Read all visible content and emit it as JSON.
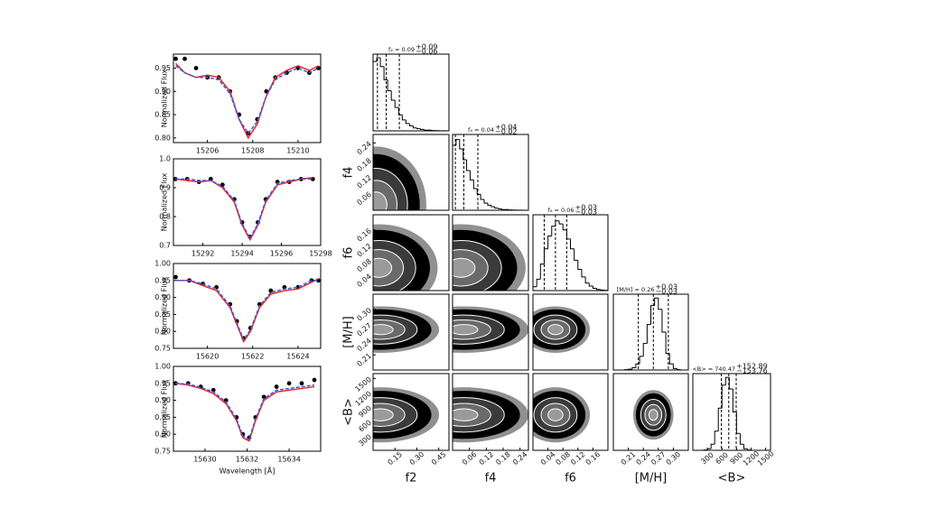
{
  "chart_data": [
    {
      "type": "line",
      "ylabel": "Normalized Flux",
      "xlim": [
        15204.5,
        15211
      ],
      "ylim": [
        0.79,
        0.98
      ],
      "xticks": [
        15206,
        15208,
        15210
      ],
      "yticks": [
        {
          "value": 0.8,
          "label": "0.80"
        },
        0.85,
        {
          "value": 0.9,
          "label": "0.90"
        },
        0.95
      ],
      "x": [
        15204.6,
        15205.0,
        15205.5,
        15206.0,
        15206.5,
        15207.0,
        15207.4,
        15207.8,
        15208.2,
        15208.6,
        15209.0,
        15209.5,
        15210.0,
        15210.5,
        15210.9
      ],
      "series": [
        {
          "style": "dots",
          "color": "#000000",
          "values": [
            0.97,
            0.97,
            0.95,
            0.93,
            0.93,
            0.9,
            0.85,
            0.81,
            0.84,
            0.9,
            0.93,
            0.94,
            0.95,
            0.94,
            0.95
          ]
        },
        {
          "style": "solid",
          "color": "#e8262a",
          "values": [
            0.96,
            0.94,
            0.93,
            0.935,
            0.93,
            0.9,
            0.84,
            0.8,
            0.83,
            0.89,
            0.93,
            0.945,
            0.955,
            0.945,
            0.955
          ]
        },
        {
          "style": "dashed",
          "color": "#3a5bd9",
          "values": [
            0.955,
            0.94,
            0.93,
            0.93,
            0.925,
            0.895,
            0.84,
            0.81,
            0.835,
            0.89,
            0.925,
            0.94,
            0.95,
            0.94,
            0.95
          ]
        }
      ]
    },
    {
      "type": "line",
      "ylabel": "Normalized Flux",
      "xlim": [
        15290.5,
        15298
      ],
      "ylim": [
        0.7,
        1.0
      ],
      "xticks": [
        15292,
        15294,
        15296,
        15298
      ],
      "yticks": [
        0.7,
        0.8,
        0.9,
        {
          "value": 1.0,
          "label": "1.0"
        }
      ],
      "x": [
        15290.6,
        15291.2,
        15291.8,
        15292.4,
        15293.0,
        15293.6,
        15294.0,
        15294.4,
        15294.8,
        15295.2,
        15295.8,
        15296.4,
        15297.0,
        15297.6
      ],
      "series": [
        {
          "style": "dots",
          "color": "#000000",
          "values": [
            0.93,
            0.93,
            0.92,
            0.93,
            0.91,
            0.86,
            0.78,
            0.73,
            0.78,
            0.86,
            0.92,
            0.92,
            0.93,
            0.93
          ]
        },
        {
          "style": "solid",
          "color": "#e8262a",
          "values": [
            0.93,
            0.925,
            0.92,
            0.925,
            0.9,
            0.85,
            0.77,
            0.72,
            0.77,
            0.85,
            0.91,
            0.92,
            0.93,
            0.935
          ]
        },
        {
          "style": "dashed",
          "color": "#3a5bd9",
          "values": [
            0.93,
            0.93,
            0.925,
            0.925,
            0.905,
            0.855,
            0.775,
            0.725,
            0.775,
            0.855,
            0.915,
            0.925,
            0.93,
            0.93
          ]
        }
      ]
    },
    {
      "type": "line",
      "ylabel": "Normalized Flux",
      "xlim": [
        15618.5,
        15625
      ],
      "ylim": [
        0.75,
        1.0
      ],
      "xticks": [
        15620,
        15622,
        15624
      ],
      "yticks": [
        0.75,
        {
          "value": 0.8,
          "label": "0.80"
        },
        0.85,
        {
          "value": 0.9,
          "label": "0.90"
        },
        0.95,
        {
          "value": 1.0,
          "label": "1.00"
        }
      ],
      "x": [
        15618.6,
        15619.2,
        15619.8,
        15620.4,
        15621.0,
        15621.3,
        15621.6,
        15621.9,
        15622.3,
        15622.8,
        15623.4,
        15624.0,
        15624.6,
        15624.9
      ],
      "series": [
        {
          "style": "dots",
          "color": "#000000",
          "values": [
            0.96,
            0.95,
            0.94,
            0.93,
            0.88,
            0.83,
            0.78,
            0.81,
            0.88,
            0.92,
            0.93,
            0.93,
            0.95,
            0.95
          ]
        },
        {
          "style": "solid",
          "color": "#e8262a",
          "values": [
            0.95,
            0.95,
            0.935,
            0.92,
            0.87,
            0.82,
            0.77,
            0.8,
            0.87,
            0.91,
            0.92,
            0.925,
            0.945,
            0.955
          ]
        },
        {
          "style": "dashed",
          "color": "#3a5bd9",
          "values": [
            0.95,
            0.95,
            0.94,
            0.925,
            0.875,
            0.825,
            0.775,
            0.805,
            0.875,
            0.915,
            0.925,
            0.93,
            0.95,
            0.95
          ]
        }
      ]
    },
    {
      "type": "line",
      "ylabel": "Normalized Flux",
      "xlabel": "Wavelength [Å]",
      "xlim": [
        15628.5,
        15635.5
      ],
      "ylim": [
        0.75,
        1.0
      ],
      "xticks": [
        15630,
        15632,
        15634
      ],
      "yticks": [
        0.75,
        {
          "value": 0.8,
          "label": "0.80"
        },
        0.85,
        {
          "value": 0.9,
          "label": "0.90"
        },
        0.95,
        {
          "value": 1.0,
          "label": "1.00"
        }
      ],
      "x": [
        15628.6,
        15629.2,
        15629.8,
        15630.4,
        15631.0,
        15631.5,
        15631.8,
        15632.1,
        15632.4,
        15632.8,
        15633.4,
        15634.0,
        15634.6,
        15635.2
      ],
      "series": [
        {
          "style": "dots",
          "color": "#000000",
          "values": [
            0.95,
            0.95,
            0.94,
            0.93,
            0.9,
            0.85,
            0.8,
            0.79,
            0.85,
            0.91,
            0.94,
            0.95,
            0.95,
            0.96
          ]
        },
        {
          "style": "solid",
          "color": "#e8262a",
          "values": [
            0.95,
            0.945,
            0.935,
            0.92,
            0.89,
            0.84,
            0.79,
            0.78,
            0.84,
            0.9,
            0.925,
            0.93,
            0.935,
            0.94
          ]
        },
        {
          "style": "dashed",
          "color": "#3a5bd9",
          "values": [
            0.95,
            0.948,
            0.938,
            0.925,
            0.895,
            0.845,
            0.795,
            0.785,
            0.845,
            0.905,
            0.93,
            0.935,
            0.94,
            0.945
          ]
        }
      ]
    },
    {
      "type": "histogram",
      "title": "f₂ = 0.09",
      "err_plus": "+0.09",
      "err_minus": "−0.06",
      "xlim": [
        0,
        0.52
      ],
      "ylim": [
        0,
        105
      ],
      "quantiles": [
        0.03,
        0.09,
        0.18
      ],
      "bins": [
        0,
        0.025,
        0.05,
        0.075,
        0.1,
        0.125,
        0.15,
        0.175,
        0.2,
        0.225,
        0.25,
        0.275,
        0.3,
        0.325,
        0.35,
        0.375,
        0.4,
        0.425,
        0.45,
        0.475,
        0.5
      ],
      "values": [
        95,
        100,
        88,
        70,
        55,
        42,
        32,
        22,
        15,
        10,
        7,
        4,
        3,
        2,
        1,
        1,
        0.5,
        0.3,
        0.2,
        0.1
      ]
    },
    {
      "type": "histogram",
      "title": "f₄ = 0.04",
      "err_plus": "+0.04",
      "err_minus": "−0.02",
      "xlim": [
        0,
        0.27
      ],
      "ylim": [
        0,
        105
      ],
      "quantiles": [
        0.01,
        0.04,
        0.09
      ],
      "bins": [
        0,
        0.0125,
        0.025,
        0.0375,
        0.05,
        0.0625,
        0.075,
        0.0875,
        0.1,
        0.1125,
        0.125,
        0.1375,
        0.15,
        0.1625,
        0.175,
        0.1875,
        0.2,
        0.2125,
        0.225,
        0.2375,
        0.25
      ],
      "values": [
        90,
        98,
        85,
        70,
        55,
        42,
        30,
        22,
        15,
        10,
        7,
        5,
        3,
        2,
        1,
        1,
        0.5,
        0.3,
        0.2,
        0.1
      ]
    },
    {
      "type": "histogram",
      "title": "f₆ = 0.06",
      "err_plus": "+0.03",
      "err_minus": "−0.03",
      "xlim": [
        0,
        0.2
      ],
      "ylim": [
        0,
        100
      ],
      "quantiles": [
        0.03,
        0.06,
        0.09
      ],
      "bins": [
        0,
        0.01,
        0.02,
        0.03,
        0.04,
        0.05,
        0.06,
        0.07,
        0.08,
        0.09,
        0.1,
        0.11,
        0.12,
        0.13,
        0.14,
        0.15,
        0.16,
        0.17,
        0.18,
        0.19,
        0.2
      ],
      "values": [
        5,
        15,
        35,
        55,
        72,
        85,
        92,
        88,
        80,
        68,
        55,
        40,
        28,
        18,
        10,
        6,
        3,
        1.5,
        0.8,
        0.3
      ]
    },
    {
      "type": "histogram",
      "title": "[M/H] = 0.26",
      "err_plus": "+0.03",
      "err_minus": "−0.03",
      "xlim": [
        0.18,
        0.33
      ],
      "ylim": [
        0,
        100
      ],
      "quantiles": [
        0.23,
        0.26,
        0.29
      ],
      "bins": [
        0.18,
        0.1875,
        0.195,
        0.2025,
        0.21,
        0.2175,
        0.225,
        0.2325,
        0.24,
        0.2475,
        0.255,
        0.2625,
        0.27,
        0.2775,
        0.285,
        0.2925,
        0.3,
        0.3075,
        0.315,
        0.3225,
        0.33
      ],
      "values": [
        0,
        0,
        0,
        0.5,
        1,
        3,
        8,
        18,
        35,
        60,
        85,
        95,
        80,
        50,
        22,
        8,
        2,
        0.5,
        0,
        0
      ]
    },
    {
      "type": "histogram",
      "title": "<B> = 740.47",
      "err_plus": "+152.89",
      "err_minus": "−153.76",
      "xlabel": "<B>",
      "xlim": [
        0,
        1600
      ],
      "ylim": [
        0,
        100
      ],
      "quantiles": [
        587,
        740,
        893
      ],
      "xticks": [
        300,
        600,
        900,
        1200,
        1500
      ],
      "bins": [
        0,
        75,
        150,
        225,
        300,
        375,
        450,
        525,
        600,
        675,
        750,
        825,
        900,
        975,
        1050,
        1125,
        1200,
        1275,
        1350,
        1425,
        1500
      ],
      "values": [
        0,
        0,
        0,
        0.5,
        2,
        8,
        25,
        55,
        85,
        95,
        80,
        50,
        22,
        8,
        2,
        0.5,
        0,
        0,
        0,
        0
      ]
    },
    {
      "type": "density",
      "ylabel": "f4",
      "xlim": [
        0,
        0.52
      ],
      "ylim": [
        0,
        0.27
      ],
      "yticks": [
        0.06,
        0.12,
        0.18,
        0.24
      ],
      "center": [
        0.02,
        0.02
      ],
      "spread": [
        0.3,
        0.18
      ]
    },
    {
      "type": "density",
      "ylabel": "f6",
      "xlim": [
        0,
        0.52
      ],
      "ylim": [
        0,
        0.2
      ],
      "yticks": [
        0.04,
        0.08,
        0.12,
        0.16
      ],
      "center": [
        0.04,
        0.06
      ],
      "spread": [
        0.35,
        0.1
      ]
    },
    {
      "type": "density",
      "xlim": [
        0,
        0.27
      ],
      "ylim": [
        0,
        0.2
      ],
      "center": [
        0.03,
        0.06
      ],
      "spread": [
        0.2,
        0.1
      ]
    },
    {
      "type": "density",
      "ylabel": "[M/H]",
      "xlim": [
        0,
        0.52
      ],
      "ylim": [
        0.18,
        0.33
      ],
      "yticks": [
        0.21,
        0.24,
        0.27,
        {
          "value": 0.3,
          "label": "0.30"
        }
      ],
      "center": [
        0.05,
        0.26
      ],
      "spread": [
        0.35,
        0.04
      ]
    },
    {
      "type": "density",
      "xlim": [
        0,
        0.27
      ],
      "ylim": [
        0.18,
        0.33
      ],
      "center": [
        0.04,
        0.26
      ],
      "spread": [
        0.2,
        0.04
      ]
    },
    {
      "type": "density",
      "xlim": [
        0,
        0.2
      ],
      "ylim": [
        0.18,
        0.33
      ],
      "center": [
        0.06,
        0.26
      ],
      "spread": [
        0.08,
        0.04
      ]
    },
    {
      "type": "density",
      "ylabel": "<B>",
      "xlabel": "f2",
      "xlim": [
        0,
        0.52
      ],
      "ylim": [
        0,
        1600
      ],
      "xticks": [
        0.15,
        {
          "value": 0.3,
          "label": "0.30"
        },
        0.45
      ],
      "yticks": [
        300,
        600,
        900,
        1200,
        1500
      ],
      "center": [
        0.05,
        740
      ],
      "spread": [
        0.35,
        500
      ]
    },
    {
      "type": "density",
      "xlabel": "f4",
      "xlim": [
        0,
        0.27
      ],
      "ylim": [
        0,
        1600
      ],
      "xticks": [
        0.06,
        0.12,
        0.18,
        0.24
      ],
      "center": [
        0.04,
        740
      ],
      "spread": [
        0.2,
        500
      ]
    },
    {
      "type": "density",
      "xlabel": "f6",
      "xlim": [
        0,
        0.2
      ],
      "ylim": [
        0,
        1600
      ],
      "xticks": [
        0.04,
        0.08,
        0.12,
        0.16
      ],
      "center": [
        0.06,
        740
      ],
      "spread": [
        0.08,
        500
      ]
    },
    {
      "type": "density",
      "xlabel": "[M/H]",
      "xlim": [
        0.18,
        0.33
      ],
      "ylim": [
        0,
        1600
      ],
      "xticks": [
        0.21,
        0.24,
        0.27,
        {
          "value": 0.3,
          "label": "0.30"
        }
      ],
      "center": [
        0.26,
        740
      ],
      "spread": [
        0.035,
        450
      ]
    }
  ]
}
